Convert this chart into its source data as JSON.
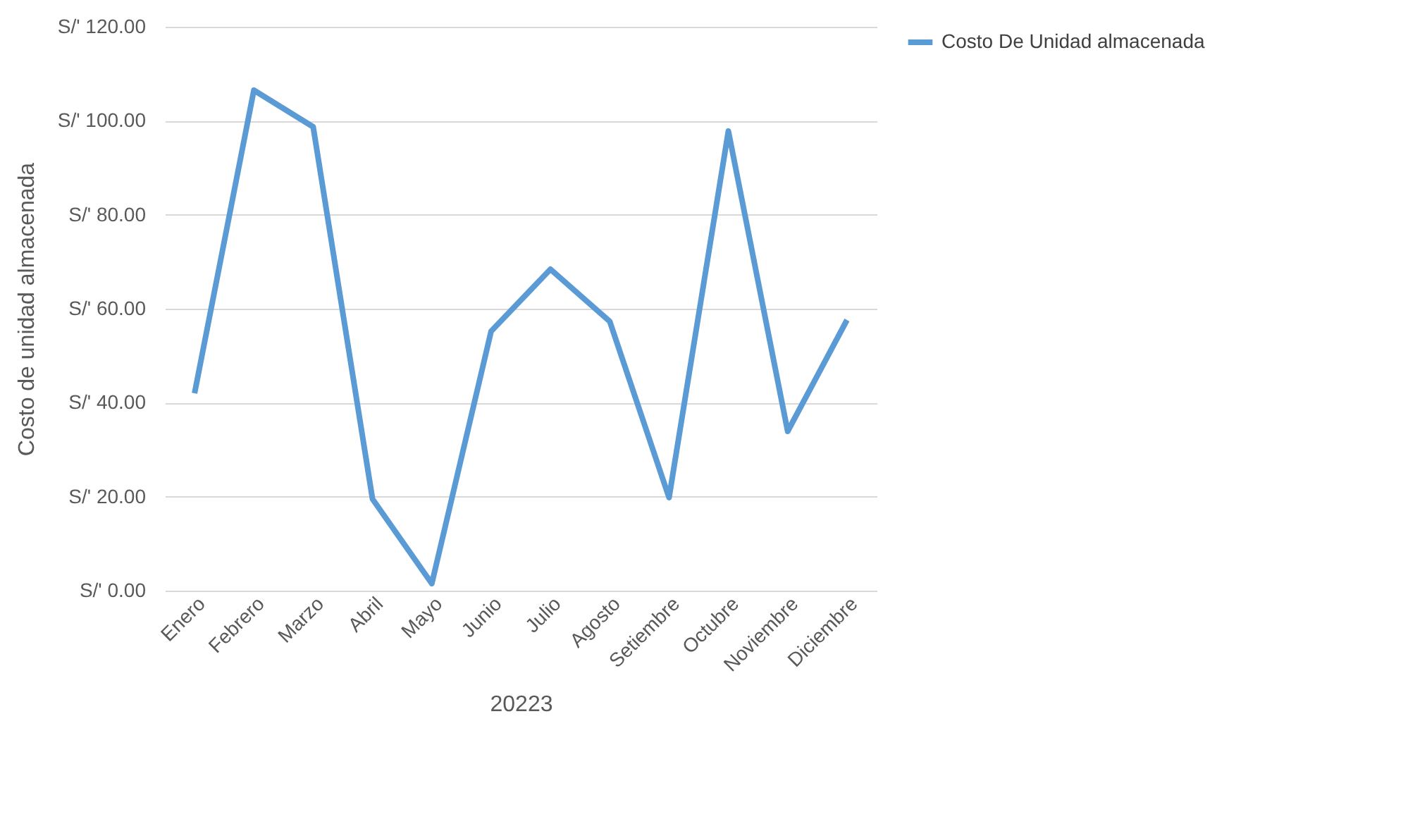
{
  "chart_data": {
    "type": "line",
    "xlabel": "20223",
    "ylabel": "Costo de unidad almacenada",
    "categories": [
      "Enero",
      "Febrero",
      "Marzo",
      "Abril",
      "Mayo",
      "Junio",
      "Julio",
      "Agosto",
      "Setiembre",
      "Octubre",
      "Noviembre",
      "Diciembre"
    ],
    "series": [
      {
        "name": "Costo De Unidad almacenada",
        "color": "#5b9bd5",
        "values": [
          42,
          106.5,
          98.7,
          19.5,
          1.5,
          55.2,
          68.4,
          57.3,
          19.8,
          97.8,
          33.9,
          57.6
        ]
      }
    ],
    "ylim": [
      0,
      120
    ],
    "yticks": [
      {
        "value": 0,
        "label": "S/' 0.00"
      },
      {
        "value": 20,
        "label": "S/' 20.00"
      },
      {
        "value": 40,
        "label": "S/' 40.00"
      },
      {
        "value": 60,
        "label": "S/' 60.00"
      },
      {
        "value": 80,
        "label": "S/' 80.00"
      },
      {
        "value": 100,
        "label": "S/' 100.00"
      },
      {
        "value": 120,
        "label": "S/' 120.00"
      }
    ],
    "grid": "y",
    "legend": "right",
    "marker": "none",
    "line_style": "solid"
  }
}
